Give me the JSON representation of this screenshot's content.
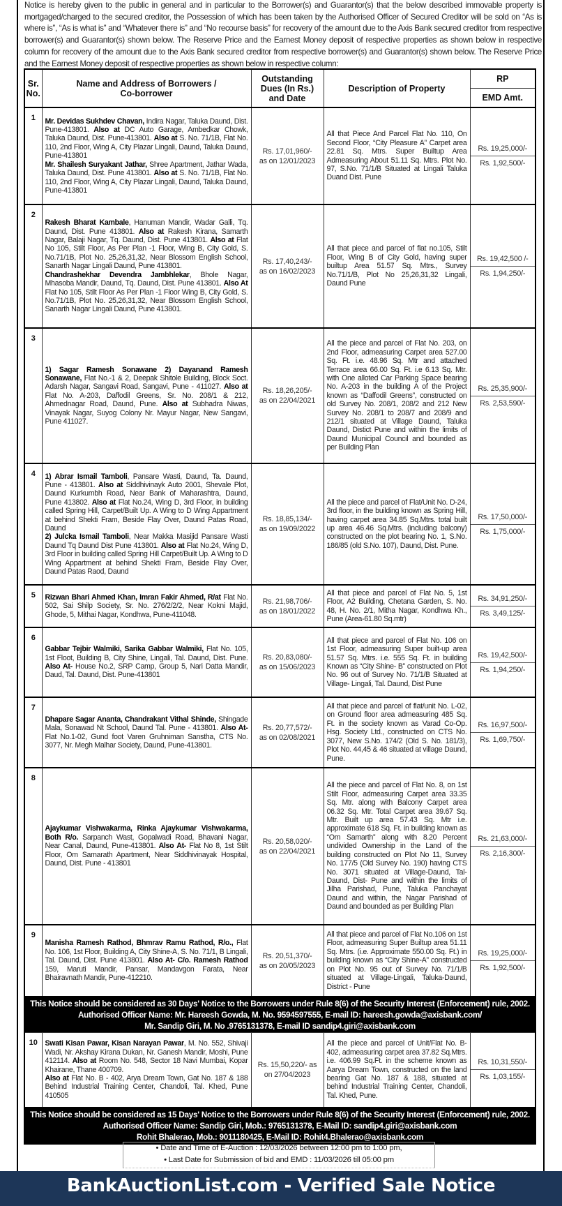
{
  "intro": "Notice is hereby given to the public in general and in particular to the Borrower(s) and Guarantor(s) that the below described immovable property is mortgaged/charged to the secured creditor, the Possession of which has been taken by the Authorised Officer of Secured Creditor will be sold on “As is where is”, “As is what is” and “Whatever there is” and “No recourse basis” for recovery of the amount due to the Axis Bank secured creditor from respective borrower(s) and Guarantor(s) shown below. The Reserve Price and the Earnest Money deposit of respective properties as shown below in respective column for recovery of the amount due to the Axis Bank secured creditor from respective borrower(s) and Guarantor(s) shown below. The Reserve Price and the Earnest Money deposit of respective properties as shown below in respective column:",
  "table": {
    "headers": {
      "sr": "Sr. No.",
      "name": "Name and Address of Borrowers / Co-borrower",
      "dues": "Outstanding Dues (In Rs.) and Date",
      "desc": "Description of Property",
      "rp": "RP",
      "emd": "EMD Amt."
    },
    "rows": [
      {
        "type": "row",
        "sr": "1",
        "borrowers": [
          [
            {
              "b": true,
              "t": "Mr. Devidas Sukhdev Chavan,"
            },
            {
              "t": " Indira Nagar, Taluka Daund, Dist. Pune-413801. "
            },
            {
              "b": true,
              "t": "Also at"
            },
            {
              "t": " DC Auto Garage, Ambedkar Chowk, Taluka Daund, Dist. Pune-413801. "
            },
            {
              "b": true,
              "t": "Also at"
            },
            {
              "t": " S. No. 71/1B, Flat No. 110, 2nd Floor, Wing A, City Plazar Lingali, Daund, Taluka Daund, Pune-413801"
            }
          ],
          [
            {
              "b": true,
              "t": "Mr. Shailesh Suryakant Jathar,"
            },
            {
              "t": " Shree Apartment, Jathar Wada, Taluka Daund, Dist. Pune 413801. "
            },
            {
              "b": true,
              "t": "Also at"
            },
            {
              "t": " S. No. 71/1B, Flat No. 110, 2nd Floor, Wing A, City Plazar Lingali, Daund, Taluka Daund, Pune-413801"
            }
          ]
        ],
        "dues": "Rs. 17,01,960/-",
        "dues_date": "as on 12/01/2023",
        "desc": "All that Piece And Parcel Flat No. 110, On Second Floor, “City Pleasure A” Carpet area 22.81 Sq. Mtrs. Super Builtup Area Admeasuring About 51.11 Sq. Mtrs. Plot No. 97, S.No. 71/1/B Situated at Lingali Taluka Duand Dist. Pune",
        "rp": "Rs. 19,25,000/-",
        "emd": "Rs. 1,92,500/-"
      },
      {
        "type": "row",
        "sr": "2",
        "borrowers": [
          [
            {
              "b": true,
              "t": "Rakesh Bharat Kambale"
            },
            {
              "t": ", Hanuman Mandir, Wadar Galli, Tq. Daund, Dist. Pune 413801. "
            },
            {
              "b": true,
              "t": "Also at"
            },
            {
              "t": " Rakesh Kirana, Samarth Nagar, Balaji Nagar, Tq. Daund, Dist. Pune 413801. "
            },
            {
              "b": true,
              "t": "Also at"
            },
            {
              "t": " Flat No 105, Stilt Floor, As Per Plan -1 Floor, Wing B, City Gold, S. No.71/1B, Plot No. 25,26,31,32, Near Blossom English School, Sanarth Nagar Lingali Daund, Pune 413801."
            }
          ],
          [
            {
              "b": true,
              "t": "Chandrashekhar Devendra Jambhlekar"
            },
            {
              "t": ", Bhole Nagar, Mhasoba Mandir, Daund, Tq. Daund, Dist. Pune 413801. "
            },
            {
              "b": true,
              "t": "Also At"
            },
            {
              "t": " Flat No 105, Stilt Floor As Per Plan -1 Floor Wing B, City Gold, S. No.71/1B, Plot No. 25,26,31,32, Near Blossom English School, Sanarth Nagar Lingali Daund, Pune 413801."
            }
          ]
        ],
        "dues": "Rs. 17,40,243/-",
        "dues_date": "as on 16/02/2023",
        "desc": "All that piece and parcel of flat no.105, Stilt Floor, Wing B of City Gold, having super builtup Area 51.57 Sq. Mtrs., Survey No.71/1/B, Plot No 25,26,31,32 Lingali, Daund Pune",
        "rp": "Rs. 19,42,500 /-",
        "emd": "Rs. 1,94,250/-"
      },
      {
        "type": "row",
        "sr": "3",
        "borrowers": [
          [
            {
              "b": true,
              "t": "1) Sagar Ramesh Sonawane 2) Dayanand Ramesh Sonawane,"
            },
            {
              "t": " Flat No.-1 & 2, Deepak Shitole Building, Block Soct. Adarsh Nagar, Sangavi Road, Sangavi, Pune - 411027. "
            },
            {
              "b": true,
              "t": "Also at"
            },
            {
              "t": " Flat No. A-203, Daffodil Greens, Sr. No. 208/1 & 212, Ahmednagar Road, Daund, Pune. "
            },
            {
              "b": true,
              "t": "Also at"
            },
            {
              "t": " Subhadra Niwas, Vinayak Nagar, Suyog Colony Nr. Mayur Nagar, New Sangavi, Pune 411027."
            }
          ]
        ],
        "dues": "Rs. 18,26,205/-",
        "dues_date": "as on 22/04/2021",
        "desc": "All the piece and parcel of Flat No. 203, on 2nd Floor, admeasuring Carpet area 527.00 Sq. Ft. i.e. 48.96 Sq. Mtr and attached Terrace area 66.00 Sq. Ft. i.e 6.13 Sq. Mtr. with One alloted Car Parking Space bearing No. A-203 in the building A of the Project known as “Daffodil Greens”, constructed on old Survey No. 208/1, 208/2 and 212 New Survey No. 208/1 to 208/7 and 208/9 and 212/1 situated at Village Daund, Taluka Daund, Distict Pune and within the limits of Daund Municipal Council and bounded as per Building Plan",
        "rp": "Rs. 25,35,900/-",
        "emd": "Rs. 2,53,590/-"
      },
      {
        "type": "row",
        "sr": "4",
        "borrowers": [
          [
            {
              "b": true,
              "t": "1) Abrar Ismail Tamboli"
            },
            {
              "t": ", Pansare Wasti, Daund, Ta. Daund, Pune - 413801. "
            },
            {
              "b": true,
              "t": "Also at"
            },
            {
              "t": " Siddhivinayk Auto 2001, Shevale Plot, Daund Kurkumbh Road, Near Bank of Maharashtra, Daund, Pune 413802. "
            },
            {
              "b": true,
              "t": "Also at"
            },
            {
              "t": " Flat No.24, Wing D, 3rd Floor, in building called Spring Hill, Carpet/Built Up. A Wing to D Wing Appartment at behind Shekti Fram, Beside Flay Over, Daund Patas Road, Daund"
            }
          ],
          [
            {
              "b": true,
              "t": "2) Julcka Ismail Tamboli"
            },
            {
              "t": ", Near Makka Masijid Pansare Wasti Daund Tq Daund Dist Pune 413801. "
            },
            {
              "b": true,
              "t": "Also at"
            },
            {
              "t": " Flat No.24, Wing D, 3rd Floor in building called Spring Hill Carpet/Built Up. A Wing to D Wing Appartment at behind Shekti Fram, Beside Flay Over, Daund Patas Raod, Daund"
            }
          ]
        ],
        "dues": "Rs. 18,85,134/-",
        "dues_date": "as on 19/09/2022",
        "desc": "All the piece and parcel of Flat/Unit No. D-24, 3rd floor, in the building known as Spring Hill, having carpet area 34.85 Sq.Mtrs. total built up area 46.46 Sq.Mtrs. (including balcony) constructed on the plot bearing No. 1, S.No. 186/85 (old S.No. 107), Daund, Dist. Pune.",
        "rp": "Rs. 17,50,000/-",
        "emd": "Rs. 1,75,000/-"
      },
      {
        "type": "row",
        "sr": "5",
        "borrowers": [
          [
            {
              "b": true,
              "t": "Rizwan Bhari Ahmed Khan, Imran Fakir Ahmed, R/at"
            },
            {
              "t": " Flat No. 502, Sai Shilp Society, Sr. No. 276/2/2/2, Near Kokni Majid, Ghode, 5, Mithai Nagar, Kondhwa, Pune-411048."
            }
          ]
        ],
        "dues": "Rs. 21,98,706/-",
        "dues_date": "as on 18/01/2022",
        "desc": "All that piece and parcel of Flat No. 5, 1st Floor, A2 Building, Chetana Garden, S. No. 48, H. No. 2/1, Mitha Nagar, Kondhwa Kh., Pune (Area-61.80 Sq.mtr)",
        "rp": "Rs. 34,91,250/-",
        "emd": "Rs. 3,49,125/-"
      },
      {
        "type": "row",
        "sr": "6",
        "borrowers": [
          [
            {
              "b": true,
              "t": "Gabbar Tejbir Walmiki, Sarika Gabbar Walmiki,"
            },
            {
              "t": " Flat No. 105, 1st Floot, Building B, City Shine, Lingali, Tal. Daund, Dist. Pune. "
            },
            {
              "b": true,
              "t": "Also At-"
            },
            {
              "t": " House No.2, SRP Camp, Group 5, Nari Datta Mandir, Daud, Tal. Daund, Dist. Pune-413801"
            }
          ]
        ],
        "dues": "Rs. 20,83,080/-",
        "dues_date": "as on 15/06/2023",
        "desc": "All that piece and parcel of Flat No. 106 on 1st Floor, admeasuring Super built-up area 51.57 Sq. Mtrs. i.e. 555 Sq. Ft. in building Known as “City Shine- B” constructed on Plot No. 96 out of Survey No. 71/1/B Situated at Village- Lingali, Tal. Daund, Dist Pune",
        "rp": "Rs. 19,42,500/-",
        "emd": "Rs. 1,94,250/-"
      },
      {
        "type": "row",
        "sr": "7",
        "borrowers": [
          [
            {
              "b": true,
              "t": "Dhapare Sagar Ananta, Chandrakant Vithal Shinde,"
            },
            {
              "t": " Shingade Mala, Sonawad Nt School, Daund Tal. Pune - 413801. "
            },
            {
              "b": true,
              "t": "Also At-"
            },
            {
              "t": " Flat No.1-02, Gund foot Varen Gruhniman Sanstha, CTS No. 3077, Nr. Megh Malhar Society, Daund, Pune-413801."
            }
          ]
        ],
        "dues": "Rs. 20,77,572/-",
        "dues_date": "as on 02/08/2021",
        "desc": "All that piece and parcel of flat/unit No. L-02, on Ground floor area admeasuring 485 Sq. Ft. in the society known as Varad Co-Op. Hsg. Society Ltd., constructed on CTS No. 3077, New S.No. 174/2 (Old S. No. 181/3), Plot No. 44,45 & 46 situated at village Daund, Pune.",
        "rp": "Rs. 16,97,500/-",
        "emd": "Rs. 1,69,750/-"
      },
      {
        "type": "row",
        "sr": "8",
        "borrowers": [
          [
            {
              "b": true,
              "t": "Ajaykumar Vishwakarma, Rinka Ajaykumar Vishwakarma, Both R/o."
            },
            {
              "t": " Sarpanch Wast, Gopalwadi Road, Bhavani Nagar, Near Canal, Daund, Pune-413801. "
            },
            {
              "b": true,
              "t": "Also At-"
            },
            {
              "t": " Flat No 8, 1st Stilt Floor, Om Samarath Apartment, Near Siddhivinayak Hospital, Daund, Dist. Pune - 413801"
            }
          ]
        ],
        "dues": "Rs. 20,58,020/-",
        "dues_date": "as on 22/04/2021",
        "desc": "All the piece and parcel of Flat No. 8, on 1st Stilt Floor, admeasuring Carpet area 33.35 Sq. Mtr. along with Balcony Carpet area 06.32 Sq. Mtr. Total Carpet area 39.67 Sq. Mtr. Built up area 57.43 Sq. Mtr i.e. approximate 618 Sq. Ft. in building known as “Om Samarth” along with 8.20 Percent undivided Ownership in the Land of the building constructed on Plot No 11, Survey No. 177/5 (Old Survey No. 190) having CTS No. 3071 situated at Village-Daund, Tal-Daund, Dist- Pune and within the limits of Jilha Parishad, Pune, Taluka Panchayat Daund and within, the Nagar Parishad of Daund and bounded as per Building Plan",
        "rp": "Rs. 21,63,000/-",
        "emd": "Rs. 2,16,300/-"
      },
      {
        "type": "row",
        "sr": "9",
        "borrowers": [
          [
            {
              "b": true,
              "t": "Manisha Ramesh Rathod, Bhmrav Ramu Rathod, R/o.,"
            },
            {
              "t": " Flat No. 106, 1st Floor, Building A, City Shine-A, S. No. 71/1, B Lingali, Tal. Daund, Dist. Pune 413801. "
            },
            {
              "b": true,
              "t": "Also At- C/o. Ramesh Rathod"
            },
            {
              "t": " 159, Maruti Mandir, Pansar, Mandavgon Farata, Near Bhairavnath Mandir, Pune-412210."
            }
          ]
        ],
        "dues": "Rs. 20,51,370/-",
        "dues_date": "as on 20/05/2023",
        "desc": "All that piece and parcel of Flat No.106 on 1st Floor, admeasuring Super Builtup area 51.11 Sq. Mtrs. (i.e. Approximate 550.00 Sq. Ft.) in building known as “City Shine-A” constructed on Plot No. 95 out of Survey No. 71/1/B situated at Village-Lingali, Taluka-Daund, District - Pune",
        "rp": "Rs. 19,25,000/-",
        "emd": "Rs. 1,92,500/-"
      },
      {
        "type": "band",
        "lines": [
          "This Notice should be considered as 30 Days' Notice to the Borrowers under Rule 8(6) of the Security Interest (Enforcement) rule, 2002.",
          "Authorised Officer Name: Mr. Hareesh Gowda, M. No. 9594597555, E-mail ID: hareesh.gowda@axisbank.com/",
          "Mr. Sandip Giri, M. No .9765131378, E-mail ID  sandip4.giri@axisbank.com"
        ]
      },
      {
        "type": "row",
        "sr": "10",
        "borrowers": [
          [
            {
              "b": true,
              "t": "Swati Kisan Pawar, Kisan Narayan Pawar"
            },
            {
              "t": ", M. No. 552, Shivaji Wadi, Nr. Akshay Kirana Dukan, Nr. Ganesh Mandir, Moshi, Pune 412114. "
            },
            {
              "b": true,
              "t": "Also at"
            },
            {
              "t": " Room No. 548, Sector 18 Navi Mumbai, Kopar Khairane, Thane 400709."
            }
          ],
          [
            {
              "b": true,
              "t": "Also at"
            },
            {
              "t": " Flat No. B - 402, Arya Dream Town, Gat No. 187 & 188 Behind Industrial Training Center, Chandoli, Tal. Khed, Pune 410505"
            }
          ]
        ],
        "dues": "Rs. 15,50,220/- as",
        "dues_date": "on 27/04/2023",
        "desc": "All the piece and parcel of Unit/Flat No. B-402, admeasuring carpet area 37.82 Sq.Mtrs. i.e. 406.99 Sq.Ft. in the scheme known as Aarya Dream Town, constructed on the land bearing Gat No. 187 & 188, situated at behind Industrial Training Center, Chandoli, Tal. Khed, Pune.",
        "rp": "Rs. 10,31,550/-",
        "emd": "Rs. 1,03,155/-"
      },
      {
        "type": "band",
        "lines": [
          "This Notice should be considered as 15 Days' Notice to the Borrowers under Rule 8(6) of the Security Interest (Enforcement) rule, 2002.",
          "Authorised Officer Name: Sandip Giri, Mob.: 9765131378, E-Mail ID: sandip4.giri@axisbank.com",
          "Rohit Bhalerao, Mob.: 9011180425, E-Mail ID: Rohit4.Bhalerao@axisbank.com"
        ]
      }
    ]
  },
  "auction": {
    "date_time": "• Date and Time of E-Auction : 12/03/2026  between 12:00 pm to 1:00 pm,",
    "last_date": "• Last Date for Submission of bid and EMD : 11/03/2026 till 05:00 pm"
  },
  "banner": {
    "text": "BankAuctionList.com - Verified Sale Notice",
    "bg_color": "#1d3658"
  }
}
